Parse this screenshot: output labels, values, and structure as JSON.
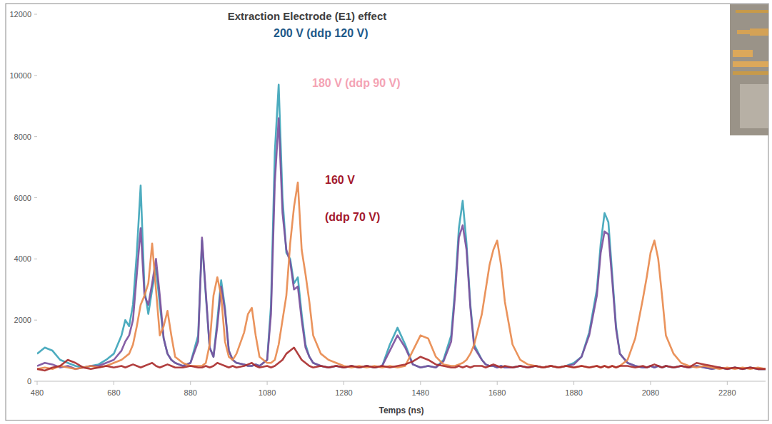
{
  "chart_data": {
    "type": "line",
    "title": "Extraction Electrode (E1) effect",
    "x_label": "Temps (ns)",
    "xlim": [
      480,
      2380
    ],
    "xticks": [
      480,
      680,
      880,
      1080,
      1280,
      1480,
      1680,
      1880,
      2080,
      2280
    ],
    "ylim": [
      0,
      12000
    ],
    "yticks": [
      0,
      2000,
      4000,
      6000,
      8000,
      10000,
      12000
    ],
    "grid": false,
    "annotations": [
      {
        "text": "200 V (ddp 120 V)",
        "color": "#1f5a8a"
      },
      {
        "text": "180 V (ddp 90 V)",
        "color": "#f4a3b4"
      },
      {
        "text": "160 V",
        "color": "#a3182c"
      },
      {
        "text": "(ddp 70 V)",
        "color": "#a3182c"
      }
    ],
    "x": [
      480,
      500,
      520,
      540,
      560,
      580,
      600,
      620,
      640,
      660,
      680,
      700,
      710,
      720,
      730,
      740,
      750,
      760,
      770,
      780,
      790,
      800,
      810,
      820,
      830,
      840,
      860,
      880,
      900,
      910,
      920,
      930,
      940,
      950,
      960,
      970,
      980,
      990,
      1000,
      1020,
      1030,
      1040,
      1050,
      1060,
      1080,
      1090,
      1100,
      1110,
      1120,
      1130,
      1140,
      1150,
      1160,
      1170,
      1180,
      1190,
      1200,
      1220,
      1240,
      1260,
      1280,
      1300,
      1320,
      1340,
      1360,
      1380,
      1400,
      1420,
      1440,
      1460,
      1480,
      1500,
      1520,
      1540,
      1560,
      1570,
      1580,
      1590,
      1600,
      1610,
      1620,
      1640,
      1650,
      1660,
      1670,
      1680,
      1690,
      1700,
      1720,
      1740,
      1760,
      1780,
      1800,
      1820,
      1840,
      1860,
      1880,
      1900,
      1920,
      1940,
      1950,
      1960,
      1970,
      1980,
      1990,
      2000,
      2020,
      2040,
      2060,
      2070,
      2080,
      2090,
      2100,
      2110,
      2120,
      2140,
      2160,
      2180,
      2200,
      2220,
      2240,
      2260,
      2280,
      2300,
      2320,
      2340,
      2360,
      2380
    ],
    "series": [
      {
        "color": "#3aa3b8",
        "values": [
          900,
          1100,
          1000,
          700,
          600,
          500,
          450,
          500,
          550,
          700,
          900,
          1500,
          2000,
          1800,
          2500,
          4200,
          6400,
          3000,
          2200,
          3000,
          3700,
          2500,
          1400,
          900,
          700,
          600,
          500,
          600,
          1500,
          4600,
          2800,
          1100,
          800,
          2000,
          3300,
          2400,
          1000,
          700,
          600,
          550,
          500,
          500,
          550,
          500,
          700,
          2500,
          7500,
          9700,
          6000,
          4200,
          4000,
          3200,
          3400,
          2200,
          1200,
          800,
          600,
          500,
          450,
          500,
          450,
          500,
          450,
          500,
          450,
          500,
          1200,
          1750,
          1200,
          550,
          450,
          500,
          450,
          700,
          1500,
          3000,
          5000,
          5900,
          4500,
          2500,
          1200,
          700,
          550,
          500,
          500,
          450,
          500,
          450,
          450,
          500,
          450,
          500,
          450,
          500,
          450,
          500,
          600,
          800,
          1600,
          3000,
          4500,
          5500,
          5200,
          3500,
          1800,
          900,
          600,
          500,
          450,
          450,
          500,
          450,
          500,
          450,
          500,
          450,
          500,
          450,
          500,
          450,
          400,
          450,
          400,
          450,
          400,
          450,
          400,
          400
        ]
      },
      {
        "color": "#7a4f9c",
        "values": [
          500,
          600,
          550,
          450,
          500,
          400,
          450,
          500,
          500,
          600,
          700,
          1000,
          1300,
          1500,
          2000,
          3500,
          5000,
          2800,
          2500,
          3200,
          4000,
          2800,
          1400,
          900,
          700,
          600,
          500,
          600,
          1300,
          4700,
          2900,
          1100,
          800,
          1800,
          3100,
          2300,
          1000,
          700,
          600,
          550,
          500,
          500,
          550,
          500,
          700,
          2200,
          6500,
          8600,
          5500,
          4300,
          3900,
          3000,
          3100,
          2000,
          1100,
          800,
          600,
          500,
          450,
          500,
          450,
          500,
          450,
          500,
          450,
          500,
          1000,
          1500,
          1100,
          550,
          450,
          500,
          450,
          650,
          1300,
          2800,
          4700,
          5100,
          4300,
          2400,
          1100,
          700,
          550,
          500,
          500,
          450,
          500,
          450,
          450,
          500,
          450,
          500,
          450,
          500,
          450,
          500,
          550,
          800,
          1500,
          2800,
          4200,
          4900,
          4800,
          3300,
          1700,
          900,
          600,
          500,
          450,
          450,
          500,
          450,
          500,
          450,
          500,
          450,
          500,
          450,
          500,
          450,
          400,
          450,
          400,
          450,
          400,
          450,
          400,
          400
        ]
      },
      {
        "color": "#e8874a",
        "values": [
          400,
          450,
          400,
          500,
          450,
          400,
          450,
          500,
          450,
          500,
          600,
          700,
          800,
          900,
          1200,
          1800,
          2500,
          2800,
          3200,
          4500,
          3000,
          1500,
          1800,
          2300,
          1500,
          800,
          600,
          500,
          500,
          500,
          600,
          1200,
          2800,
          3400,
          2800,
          1300,
          800,
          700,
          900,
          1600,
          2200,
          2400,
          1500,
          800,
          600,
          600,
          700,
          1200,
          2000,
          2800,
          4500,
          5700,
          6500,
          4300,
          3500,
          2600,
          1500,
          900,
          700,
          600,
          500,
          450,
          500,
          450,
          500,
          450,
          500,
          450,
          500,
          1000,
          1500,
          1400,
          800,
          550,
          500,
          500,
          550,
          600,
          700,
          900,
          1200,
          2200,
          3000,
          3800,
          4300,
          4600,
          3800,
          2600,
          1200,
          700,
          550,
          500,
          450,
          500,
          450,
          500,
          450,
          500,
          450,
          500,
          450,
          500,
          450,
          500,
          450,
          500,
          700,
          1400,
          2700,
          3400,
          4200,
          4600,
          4000,
          2800,
          1500,
          900,
          600,
          500,
          450,
          500,
          450,
          400,
          450,
          400,
          450,
          400,
          450,
          400
        ]
      },
      {
        "color": "#a82a2a",
        "values": [
          400,
          350,
          450,
          500,
          700,
          600,
          450,
          400,
          450,
          500,
          450,
          500,
          450,
          500,
          550,
          500,
          450,
          500,
          550,
          600,
          500,
          450,
          500,
          550,
          500,
          450,
          450,
          500,
          450,
          450,
          500,
          450,
          500,
          600,
          550,
          500,
          450,
          500,
          450,
          500,
          550,
          600,
          500,
          450,
          500,
          450,
          500,
          600,
          700,
          900,
          1000,
          1100,
          900,
          700,
          600,
          500,
          450,
          500,
          450,
          500,
          450,
          500,
          450,
          500,
          450,
          500,
          450,
          500,
          550,
          650,
          800,
          700,
          550,
          500,
          450,
          450,
          500,
          450,
          500,
          450,
          500,
          500,
          450,
          500,
          550,
          500,
          450,
          500,
          450,
          500,
          450,
          500,
          450,
          500,
          450,
          500,
          450,
          500,
          450,
          500,
          450,
          500,
          450,
          500,
          450,
          500,
          500,
          450,
          500,
          450,
          500,
          550,
          500,
          450,
          500,
          450,
          500,
          450,
          600,
          550,
          500,
          450,
          400,
          450,
          400,
          450,
          400,
          400
        ]
      }
    ]
  }
}
